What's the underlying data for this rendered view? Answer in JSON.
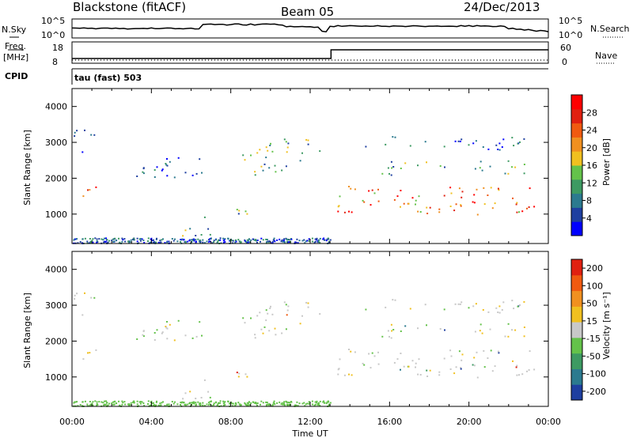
{
  "header": {
    "station": "Blackstone (fitACF)",
    "beam": "Beam 05",
    "date": "24/Dec/2013"
  },
  "strips": {
    "nsky_label": "N.Sky",
    "nsearch_label": "N.Search",
    "freq_label_1": "Freq.",
    "freq_label_2": "[MHz]",
    "nave_label": "Nave",
    "cpid_label": "CPID",
    "cpid_value": "tau (fast) 503",
    "noise_ticks": [
      "10^5",
      "10^0"
    ],
    "freq_ticks": [
      "18",
      "8"
    ],
    "nave_ticks": [
      "60",
      "0"
    ]
  },
  "chart_data": [
    {
      "type": "heatmap",
      "name": "power",
      "ylabel": "Slant Range [km]",
      "xlabel": "Time UT",
      "xlim": [
        "00:00",
        "24:00"
      ],
      "ylim": [
        180,
        4500
      ],
      "x_ticks": [
        "00:00",
        "04:00",
        "08:00",
        "12:00",
        "16:00",
        "20:00",
        "00:00"
      ],
      "y_ticks": [
        1000,
        2000,
        3000,
        4000
      ],
      "colorbar": {
        "label": "Power [dB]",
        "ticks": [
          "4",
          "8",
          "12",
          "16",
          "20",
          "24",
          "28"
        ],
        "colors": [
          "#0000ff",
          "#1e3fa0",
          "#2b7a8f",
          "#3d9a62",
          "#64c24a",
          "#f0c020",
          "#f09020",
          "#f05a10",
          "#e02010",
          "#ff0000"
        ]
      },
      "regions": [
        {
          "t0": 0.0,
          "t1": 1.2,
          "r0": 1400,
          "r1": 1800,
          "level": "high"
        },
        {
          "t0": 0.0,
          "t1": 1.2,
          "r0": 2700,
          "r1": 3400,
          "level": "low"
        },
        {
          "t0": 2.5,
          "t1": 6.5,
          "r0": 1900,
          "r1": 2600,
          "level": "low"
        },
        {
          "t0": 6.5,
          "t1": 9.0,
          "r0": 900,
          "r1": 1200,
          "level": "mid"
        },
        {
          "t0": 5.5,
          "t1": 9.0,
          "r0": 400,
          "r1": 650,
          "level": "mid"
        },
        {
          "t0": 8.5,
          "t1": 11.5,
          "r0": 2100,
          "r1": 3000,
          "level": "mid"
        },
        {
          "t0": 10.5,
          "t1": 12.7,
          "r0": 2700,
          "r1": 3200,
          "level": "mid"
        },
        {
          "t0": 13.0,
          "t1": 23.5,
          "r0": 1000,
          "r1": 1800,
          "level": "high"
        },
        {
          "t0": 15.5,
          "t1": 23.0,
          "r0": 2100,
          "r1": 2500,
          "level": "mid"
        },
        {
          "t0": 14.5,
          "t1": 23.0,
          "r0": 2800,
          "r1": 3200,
          "level": "low"
        }
      ]
    },
    {
      "type": "heatmap",
      "name": "velocity",
      "ylabel": "Slant Range [km]",
      "xlabel": "Time UT",
      "xlim": [
        "00:00",
        "24:00"
      ],
      "ylim": [
        180,
        4500
      ],
      "x_ticks": [
        "00:00",
        "04:00",
        "08:00",
        "12:00",
        "16:00",
        "20:00",
        "00:00"
      ],
      "y_ticks": [
        1000,
        2000,
        3000,
        4000
      ],
      "colorbar": {
        "label": "Velocity [m s⁻¹]",
        "ticks": [
          "200",
          "100",
          "50",
          "15",
          "-15",
          "-50",
          "-100",
          "-200"
        ],
        "colors": [
          "#1e3fa0",
          "#2b7a8f",
          "#3d9a62",
          "#64c24a",
          "#c8c8c8",
          "#f0c020",
          "#f09020",
          "#f05a10",
          "#e02010"
        ]
      }
    }
  ],
  "x_axis_title": "Time UT"
}
